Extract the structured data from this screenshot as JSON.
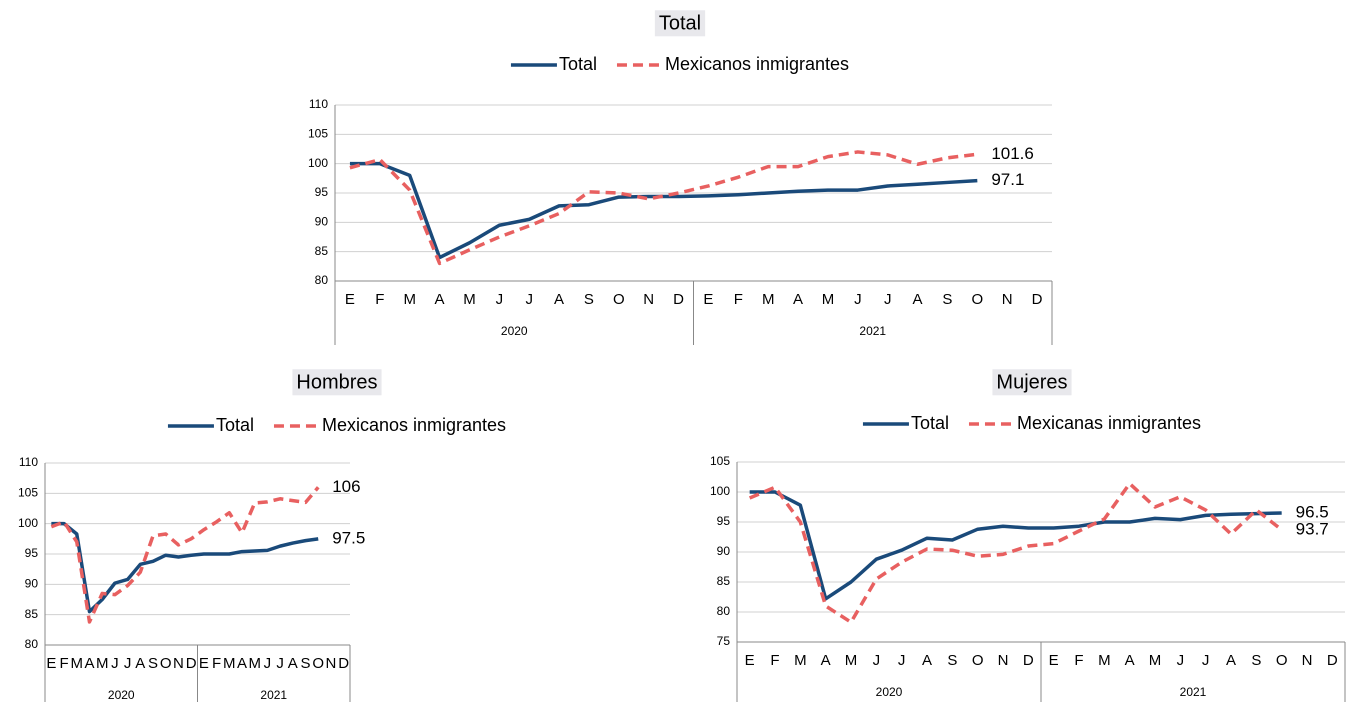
{
  "chart_data": [
    {
      "type": "line",
      "title": "Total",
      "categories": [
        "E",
        "F",
        "M",
        "A",
        "M",
        "J",
        "J",
        "A",
        "S",
        "O",
        "N",
        "D",
        "E",
        "F",
        "M",
        "A",
        "M",
        "J",
        "J",
        "A",
        "S",
        "O",
        "N",
        "D"
      ],
      "years": [
        "2020",
        "2021"
      ],
      "series": [
        {
          "name": "Total",
          "color": "#1a4a7a",
          "dash": false,
          "values": [
            100,
            100,
            98,
            84,
            86.5,
            89.5,
            90.5,
            92.8,
            93,
            94.3,
            94.4,
            94.4,
            94.5,
            94.7,
            95,
            95.3,
            95.5,
            95.5,
            96.2,
            96.5,
            96.8,
            97.1,
            null,
            null
          ]
        },
        {
          "name": "Mexicanos inmigrantes",
          "color": "#e86060",
          "dash": true,
          "values": [
            99.3,
            100.7,
            95.5,
            83,
            85.3,
            87.5,
            89.4,
            91.5,
            95.2,
            95,
            94,
            95,
            96.2,
            97.7,
            99.5,
            99.5,
            101.2,
            102,
            101.5,
            99.9,
            101,
            101.6,
            null,
            null
          ]
        }
      ],
      "ylim": [
        80,
        110
      ],
      "yticks": [
        80,
        85,
        90,
        95,
        100,
        105,
        110
      ],
      "grid": true
    },
    {
      "type": "line",
      "title": "Hombres",
      "categories": [
        "E",
        "F",
        "M",
        "A",
        "M",
        "J",
        "J",
        "A",
        "S",
        "O",
        "N",
        "D",
        "E",
        "F",
        "M",
        "A",
        "M",
        "J",
        "J",
        "A",
        "S",
        "O",
        "N",
        "D"
      ],
      "years": [
        "2020",
        "2021"
      ],
      "series": [
        {
          "name": "Total",
          "color": "#1a4a7a",
          "dash": false,
          "values": [
            100,
            100,
            98.3,
            85.5,
            87.5,
            90.2,
            90.8,
            93.3,
            93.8,
            94.8,
            94.5,
            94.8,
            95,
            95,
            95,
            95.4,
            95.5,
            95.6,
            96.3,
            96.8,
            97.2,
            97.5,
            null,
            null
          ]
        },
        {
          "name": "Mexicanos inmigrantes",
          "color": "#e86060",
          "dash": true,
          "values": [
            99.5,
            100.3,
            97,
            83.8,
            88.5,
            88.3,
            89.8,
            92,
            98,
            98.3,
            96.5,
            97.5,
            99,
            100.3,
            101.8,
            98.5,
            103.4,
            103.6,
            104.1,
            103.8,
            103.5,
            106.0,
            null,
            null
          ]
        }
      ],
      "ylim": [
        80,
        110
      ],
      "yticks": [
        80,
        85,
        90,
        95,
        100,
        105,
        110
      ],
      "grid": true
    },
    {
      "type": "line",
      "title": "Mujeres",
      "categories": [
        "E",
        "F",
        "M",
        "A",
        "M",
        "J",
        "J",
        "A",
        "S",
        "O",
        "N",
        "D",
        "E",
        "F",
        "M",
        "A",
        "M",
        "J",
        "J",
        "A",
        "S",
        "O",
        "N",
        "D"
      ],
      "years": [
        "2020",
        "2021"
      ],
      "series": [
        {
          "name": "Total",
          "color": "#1a4a7a",
          "dash": false,
          "values": [
            100,
            100,
            97.8,
            82.2,
            85,
            88.8,
            90.3,
            92.3,
            92,
            93.8,
            94.3,
            94,
            94,
            94.3,
            95,
            95,
            95.6,
            95.4,
            96.1,
            96.3,
            96.4,
            96.5,
            null,
            null
          ]
        },
        {
          "name": "Mexicanas inmigrantes",
          "color": "#e86060",
          "dash": true,
          "values": [
            99,
            100.8,
            95,
            81,
            78.3,
            85.5,
            88.3,
            90.5,
            90.3,
            89.3,
            89.6,
            91,
            91.4,
            93.5,
            95.5,
            101.4,
            97.5,
            99.2,
            97,
            93,
            97,
            93.7,
            null,
            null
          ]
        }
      ],
      "ylim": [
        75,
        105
      ],
      "yticks": [
        75,
        80,
        85,
        90,
        95,
        100,
        105
      ],
      "grid": true
    }
  ]
}
